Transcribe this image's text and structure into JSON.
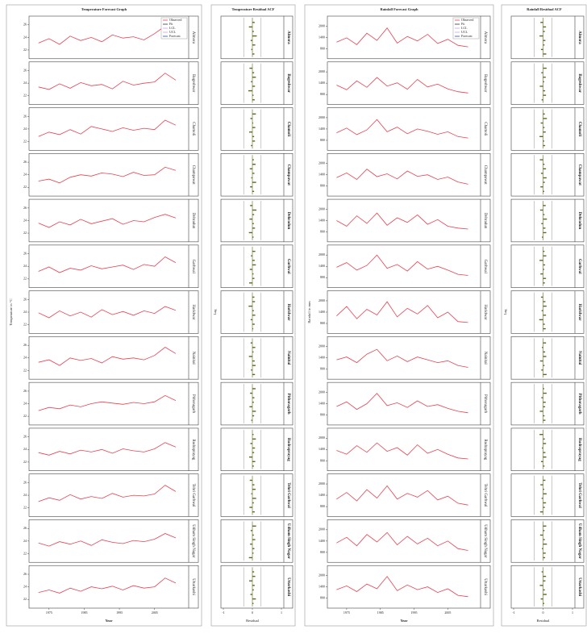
{
  "chart_data": [
    {
      "type": "line",
      "title": "Temperature Forecast Graph",
      "ylabel": "Temperature in °C",
      "xlabel": "Year",
      "legend": [
        "Observed",
        "Fit",
        "LCL",
        "UCL",
        "Forecast"
      ],
      "color": "#e8414f",
      "x": [
        1972,
        1975,
        1978,
        1981,
        1984,
        1987,
        1990,
        1993,
        1996,
        1999,
        2002,
        2005,
        2008,
        2011
      ],
      "xlim": [
        1970,
        2014
      ],
      "xticks": [
        1975,
        1985,
        1995,
        2005
      ],
      "ylim": [
        21,
        27
      ],
      "yticks": [
        22,
        24,
        26
      ],
      "panels": [
        {
          "name": "Almora",
          "values": [
            23.1,
            23.8,
            22.9,
            24.2,
            23.5,
            24.0,
            23.3,
            24.4,
            23.9,
            24.1,
            23.6,
            24.6,
            25.8,
            24.8
          ]
        },
        {
          "name": "Bageshwar",
          "values": [
            23.4,
            23.0,
            23.9,
            23.2,
            24.1,
            23.6,
            23.8,
            23.1,
            24.3,
            23.7,
            24.0,
            24.2,
            25.6,
            24.5
          ]
        },
        {
          "name": "Chamoli",
          "values": [
            22.8,
            23.5,
            23.1,
            23.9,
            23.2,
            24.4,
            24.0,
            23.6,
            24.2,
            23.8,
            24.1,
            23.9,
            25.4,
            24.6
          ]
        },
        {
          "name": "Champawat",
          "values": [
            23.0,
            23.3,
            22.7,
            23.6,
            24.0,
            23.8,
            24.3,
            24.1,
            23.7,
            24.4,
            23.9,
            24.0,
            25.2,
            24.7
          ]
        },
        {
          "name": "Dehradun",
          "values": [
            23.6,
            22.9,
            23.8,
            23.3,
            24.2,
            23.5,
            23.9,
            24.3,
            23.4,
            24.0,
            23.8,
            24.5,
            25.0,
            24.4
          ]
        },
        {
          "name": "Garhwal",
          "values": [
            23.2,
            23.9,
            23.0,
            23.7,
            23.4,
            24.1,
            23.6,
            23.9,
            24.2,
            23.5,
            24.3,
            24.0,
            25.5,
            24.6
          ]
        },
        {
          "name": "Haridwar",
          "values": [
            23.9,
            23.1,
            24.2,
            23.4,
            24.0,
            23.2,
            24.4,
            23.6,
            24.1,
            23.5,
            24.2,
            23.8,
            24.9,
            24.3
          ]
        },
        {
          "name": "Nainital",
          "values": [
            23.3,
            23.7,
            22.8,
            24.0,
            23.6,
            23.9,
            23.2,
            24.2,
            23.8,
            24.0,
            23.7,
            24.4,
            25.7,
            24.7
          ]
        },
        {
          "name": "Pithoragarh",
          "values": [
            22.9,
            23.4,
            23.2,
            23.8,
            23.5,
            24.0,
            24.3,
            24.1,
            23.9,
            24.2,
            24.0,
            24.3,
            25.3,
            24.5
          ]
        },
        {
          "name": "Rudraprayag",
          "values": [
            23.5,
            23.1,
            23.7,
            23.3,
            23.9,
            23.6,
            24.0,
            23.4,
            24.1,
            23.8,
            23.6,
            24.1,
            25.1,
            24.4
          ]
        },
        {
          "name": "Tehri Garhwal",
          "values": [
            23.0,
            23.6,
            23.2,
            24.1,
            23.4,
            23.8,
            23.5,
            24.3,
            23.7,
            24.0,
            23.9,
            24.2,
            25.6,
            24.6
          ]
        },
        {
          "name": "Udham Singh Nagar",
          "values": [
            23.7,
            23.2,
            23.9,
            23.5,
            24.0,
            23.3,
            24.2,
            23.8,
            23.6,
            24.1,
            23.9,
            24.3,
            25.2,
            24.5
          ]
        },
        {
          "name": "Uttarkashi",
          "values": [
            23.1,
            23.5,
            23.0,
            23.8,
            23.3,
            24.0,
            23.7,
            24.1,
            23.5,
            24.2,
            23.8,
            24.0,
            25.4,
            24.6
          ]
        }
      ]
    },
    {
      "type": "acf",
      "title": "Temperature Residual ACF",
      "ylabel": "Lag",
      "xlabel": "Residual",
      "color": "#5a6b1e",
      "xlim": [
        -1,
        1
      ],
      "xticks": [
        -1,
        0,
        1
      ],
      "panels": [
        {
          "name": "Almora",
          "values": [
            0.08,
            -0.12,
            0.05,
            0.15,
            -0.06,
            0.1,
            -0.04,
            0.07
          ]
        },
        {
          "name": "Bageshwar",
          "values": [
            -0.1,
            0.06,
            0.12,
            -0.05,
            0.09,
            -0.14,
            0.04,
            0.08
          ]
        },
        {
          "name": "Chamoli",
          "values": [
            0.12,
            -0.07,
            0.03,
            0.1,
            -0.11,
            0.06,
            0.09,
            -0.05
          ]
        },
        {
          "name": "Champawat",
          "values": [
            0.05,
            0.11,
            -0.09,
            0.07,
            -0.04,
            0.13,
            -0.08,
            0.06
          ]
        },
        {
          "name": "Dehradun",
          "values": [
            -0.08,
            0.14,
            0.06,
            -0.1,
            0.05,
            0.09,
            -0.12,
            0.04
          ]
        },
        {
          "name": "Garhwal",
          "values": [
            0.1,
            -0.05,
            0.08,
            0.12,
            -0.09,
            0.04,
            0.07,
            -0.11
          ]
        },
        {
          "name": "Haridwar",
          "values": [
            0.07,
            0.09,
            -0.13,
            0.05,
            0.1,
            -0.06,
            0.08,
            0.03
          ]
        },
        {
          "name": "Nainital",
          "values": [
            -0.06,
            0.1,
            0.04,
            -0.12,
            0.08,
            0.11,
            -0.05,
            0.09
          ]
        },
        {
          "name": "Pithoragarh",
          "values": [
            0.11,
            -0.08,
            0.07,
            0.05,
            -0.1,
            0.12,
            0.06,
            -0.04
          ]
        },
        {
          "name": "Rudraprayag",
          "values": [
            0.04,
            0.12,
            -0.07,
            0.09,
            0.06,
            -0.11,
            0.1,
            0.05
          ]
        },
        {
          "name": "Tehri Garhwal",
          "values": [
            -0.09,
            0.07,
            0.11,
            -0.04,
            0.13,
            0.05,
            -0.1,
            0.08
          ]
        },
        {
          "name": "Udham Singh Nagar",
          "values": [
            0.13,
            -0.06,
            0.05,
            0.1,
            -0.08,
            0.07,
            0.04,
            -0.12
          ]
        },
        {
          "name": "Uttarkashi",
          "values": [
            0.06,
            0.1,
            -0.11,
            0.08,
            0.05,
            -0.07,
            0.12,
            0.04
          ]
        }
      ]
    },
    {
      "type": "line",
      "title": "Rainfall Forecast Graph",
      "ylabel": "Rainfall in mm",
      "xlabel": "Year",
      "legend": [
        "Observed",
        "Fit",
        "LCL",
        "UCL",
        "Forecast"
      ],
      "color": "#e8414f",
      "x": [
        1972,
        1975,
        1978,
        1981,
        1984,
        1987,
        1990,
        1993,
        1996,
        1999,
        2002,
        2005,
        2008,
        2011
      ],
      "xlim": [
        1970,
        2014
      ],
      "xticks": [
        1975,
        1985,
        1995,
        2005
      ],
      "ylim": [
        400,
        2400
      ],
      "yticks": [
        800,
        1400,
        2000
      ],
      "panels": [
        {
          "name": "Almora",
          "values": [
            1150,
            1380,
            1020,
            1620,
            1240,
            1900,
            1100,
            1450,
            1210,
            1560,
            1080,
            1300,
            980,
            900
          ]
        },
        {
          "name": "Bageshwar",
          "values": [
            1300,
            1050,
            1520,
            1180,
            1700,
            1250,
            1420,
            1080,
            1600,
            1200,
            1350,
            1100,
            950,
            880
          ]
        },
        {
          "name": "Chamoli",
          "values": [
            1200,
            1450,
            1100,
            1350,
            1900,
            1250,
            1500,
            1150,
            1400,
            1280,
            1120,
            1250,
            1000,
            920
          ]
        },
        {
          "name": "Champawat",
          "values": [
            1250,
            1500,
            1150,
            1700,
            1300,
            1450,
            1180,
            1600,
            1320,
            1400,
            1150,
            1280,
            1020,
            900
          ]
        },
        {
          "name": "Dehradun",
          "values": [
            1400,
            1100,
            1650,
            1250,
            1800,
            1150,
            1550,
            1300,
            1700,
            1200,
            1450,
            1100,
            1000,
            950
          ]
        },
        {
          "name": "Garhwal",
          "values": [
            1350,
            1600,
            1200,
            1450,
            2000,
            1300,
            1500,
            1150,
            1650,
            1250,
            1400,
            1200,
            980,
            920
          ]
        },
        {
          "name": "Haridwar",
          "values": [
            1200,
            1700,
            1050,
            1550,
            1250,
            1950,
            1150,
            1600,
            1300,
            1750,
            1100,
            1400,
            900,
            850
          ]
        },
        {
          "name": "Nainital",
          "values": [
            1300,
            1450,
            1150,
            1600,
            1850,
            1250,
            1500,
            1200,
            1450,
            1300,
            1150,
            1250,
            1000,
            900
          ]
        },
        {
          "name": "Pithoragarh",
          "values": [
            1250,
            1500,
            1100,
            1400,
            1950,
            1300,
            1450,
            1200,
            1550,
            1250,
            1350,
            1150,
            1000,
            920
          ]
        },
        {
          "name": "Rudraprayag",
          "values": [
            1350,
            1150,
            1600,
            1250,
            1750,
            1300,
            1500,
            1100,
            1650,
            1200,
            1400,
            1150,
            950,
            900
          ]
        },
        {
          "name": "Tehri Garhwal",
          "values": [
            1200,
            1550,
            1100,
            1700,
            1250,
            1900,
            1200,
            1500,
            1300,
            1650,
            1150,
            1350,
            980,
            880
          ]
        },
        {
          "name": "Udham Singh Nagar",
          "values": [
            1300,
            1600,
            1150,
            1750,
            1350,
            1850,
            1200,
            1650,
            1250,
            1550,
            1150,
            1400,
            1000,
            900
          ]
        },
        {
          "name": "Uttarkashi",
          "values": [
            1250,
            1450,
            1150,
            1550,
            1300,
            1950,
            1200,
            1500,
            1250,
            1400,
            1100,
            1300,
            950,
            880
          ]
        }
      ]
    },
    {
      "type": "acf",
      "title": "Rainfall Residual ACF",
      "ylabel": "Lag",
      "xlabel": "Residual",
      "color": "#5a6b1e",
      "xlim": [
        -1,
        1
      ],
      "xticks": [
        -1,
        0,
        1
      ],
      "panels": [
        {
          "name": "Almora",
          "values": [
            -0.09,
            0.1,
            0.06,
            -0.12,
            0.08,
            0.05,
            -0.07,
            0.11
          ]
        },
        {
          "name": "Bageshwar",
          "values": [
            0.12,
            -0.06,
            0.09,
            0.04,
            -0.11,
            0.07,
            0.1,
            -0.05
          ]
        },
        {
          "name": "Chamoli",
          "values": [
            0.06,
            0.13,
            -0.08,
            0.05,
            0.09,
            -0.12,
            0.04,
            0.07
          ]
        },
        {
          "name": "Champawat",
          "values": [
            -0.11,
            0.05,
            0.1,
            -0.07,
            0.12,
            0.06,
            -0.09,
            0.04
          ]
        },
        {
          "name": "Dehradun",
          "values": [
            0.09,
            -0.1,
            0.05,
            0.13,
            -0.06,
            0.08,
            0.11,
            -0.04
          ]
        },
        {
          "name": "Garhwal",
          "values": [
            0.05,
            0.11,
            -0.12,
            0.07,
            0.04,
            -0.09,
            0.1,
            0.06
          ]
        },
        {
          "name": "Haridwar",
          "values": [
            -0.07,
            0.08,
            0.12,
            -0.05,
            0.1,
            -0.13,
            0.06,
            0.09
          ]
        },
        {
          "name": "Nainital",
          "values": [
            0.1,
            -0.04,
            0.07,
            0.11,
            -0.1,
            0.05,
            -0.06,
            0.12
          ]
        },
        {
          "name": "Pithoragarh",
          "values": [
            0.04,
            0.12,
            -0.06,
            0.09,
            0.07,
            -0.11,
            0.05,
            0.08
          ]
        },
        {
          "name": "Rudraprayag",
          "values": [
            -0.12,
            0.06,
            0.1,
            -0.04,
            0.08,
            0.11,
            -0.07,
            0.05
          ]
        },
        {
          "name": "Tehri Garhwal",
          "values": [
            0.08,
            -0.09,
            0.04,
            0.12,
            -0.05,
            0.1,
            0.06,
            -0.1
          ]
        },
        {
          "name": "Udham Singh Nagar",
          "values": [
            0.11,
            0.05,
            -0.1,
            0.06,
            0.13,
            -0.04,
            0.09,
            0.07
          ]
        },
        {
          "name": "Uttarkashi",
          "values": [
            -0.05,
            0.1,
            0.08,
            -0.11,
            0.06,
            0.12,
            -0.08,
            0.04
          ]
        }
      ]
    }
  ]
}
